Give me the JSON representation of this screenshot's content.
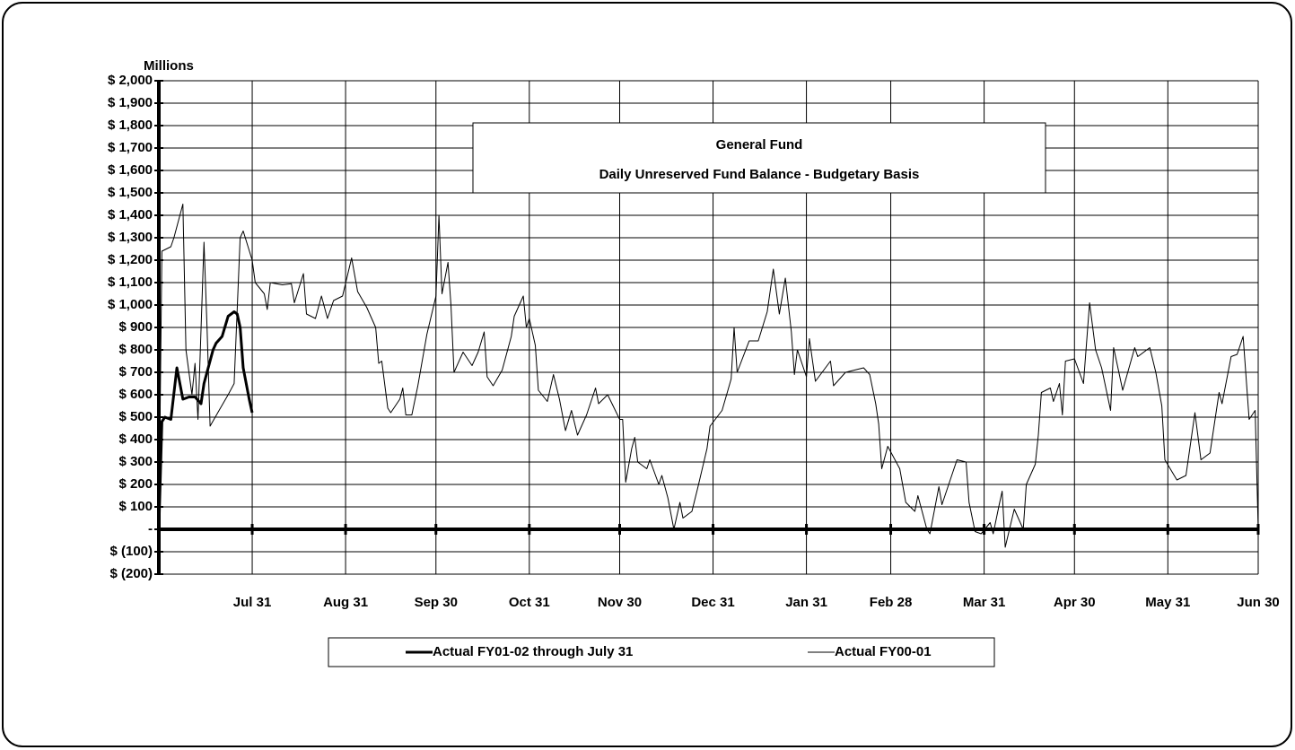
{
  "chart_data": {
    "type": "line",
    "title": "General Fund",
    "subtitle": "Daily Unreserved Fund Balance - Budgetary Basis",
    "y_label": "Millions",
    "xlim": [
      0,
      365
    ],
    "xticks": [
      {
        "value": 31,
        "label": "Jul 31"
      },
      {
        "value": 62,
        "label": "Aug 31"
      },
      {
        "value": 92,
        "label": "Sep 30"
      },
      {
        "value": 123,
        "label": "Oct 31"
      },
      {
        "value": 153,
        "label": "Nov 30"
      },
      {
        "value": 184,
        "label": "Dec 31"
      },
      {
        "value": 215,
        "label": "Jan 31"
      },
      {
        "value": 243,
        "label": "Feb 28"
      },
      {
        "value": 274,
        "label": "Mar 31"
      },
      {
        "value": 304,
        "label": "Apr 30"
      },
      {
        "value": 335,
        "label": "May 31"
      },
      {
        "value": 365,
        "label": "Jun 30"
      }
    ],
    "ylim": [
      -200,
      2000
    ],
    "yticks": [
      {
        "value": -200,
        "label": "$ (200)"
      },
      {
        "value": -100,
        "label": "$ (100)"
      },
      {
        "value": 0,
        "label": "-"
      },
      {
        "value": 100,
        "label": "$ 100"
      },
      {
        "value": 200,
        "label": "$ 200"
      },
      {
        "value": 300,
        "label": "$ 300"
      },
      {
        "value": 400,
        "label": "$ 400"
      },
      {
        "value": 500,
        "label": "$ 500"
      },
      {
        "value": 600,
        "label": "$ 600"
      },
      {
        "value": 700,
        "label": "$ 700"
      },
      {
        "value": 800,
        "label": "$ 800"
      },
      {
        "value": 900,
        "label": "$ 900"
      },
      {
        "value": 1000,
        "label": "$ 1,000"
      },
      {
        "value": 1100,
        "label": "$ 1,100"
      },
      {
        "value": 1200,
        "label": "$ 1,200"
      },
      {
        "value": 1300,
        "label": "$ 1,300"
      },
      {
        "value": 1400,
        "label": "$ 1,400"
      },
      {
        "value": 1500,
        "label": "$ 1,500"
      },
      {
        "value": 1600,
        "label": "$ 1,600"
      },
      {
        "value": 1700,
        "label": "$ 1,700"
      },
      {
        "value": 1800,
        "label": "$ 1,800"
      },
      {
        "value": 1900,
        "label": "$ 1,900"
      },
      {
        "value": 2000,
        "label": "$ 2,000"
      }
    ],
    "grid": true,
    "series": [
      {
        "name": "Actual FY01-02 through July 31",
        "color": "#000000",
        "width": 3,
        "x": [
          0,
          1,
          2,
          4,
          6,
          8,
          10,
          12,
          14,
          15,
          18,
          19,
          21,
          23,
          25,
          26,
          27,
          28,
          30,
          31
        ],
        "values": [
          0,
          480,
          500,
          490,
          720,
          580,
          590,
          590,
          560,
          650,
          800,
          830,
          860,
          950,
          970,
          960,
          900,
          720,
          580,
          520
        ]
      },
      {
        "name": "Actual FY00-01",
        "color": "#000000",
        "width": 1,
        "x": [
          0,
          1,
          4,
          5,
          8,
          9,
          11,
          12,
          13,
          15,
          16,
          17,
          20,
          23,
          25,
          27,
          28,
          31,
          32,
          35,
          36,
          37,
          41,
          44,
          45,
          48,
          49,
          52,
          54,
          56,
          58,
          61,
          64,
          66,
          69,
          72,
          73,
          74,
          76,
          77,
          80,
          81,
          82,
          84,
          86,
          89,
          92,
          93,
          94,
          96,
          97,
          98,
          101,
          104,
          106,
          108,
          109,
          111,
          114,
          117,
          118,
          121,
          122,
          123,
          125,
          126,
          129,
          131,
          133,
          135,
          137,
          139,
          142,
          145,
          146,
          149,
          153,
          154,
          155,
          157,
          158,
          159,
          162,
          163,
          166,
          167,
          169,
          171,
          173,
          174,
          177,
          179,
          182,
          183,
          187,
          190,
          191,
          192,
          196,
          199,
          202,
          204,
          206,
          208,
          210,
          211,
          212,
          215,
          216,
          218,
          223,
          224,
          228,
          234,
          236,
          238,
          239,
          240,
          242,
          246,
          248,
          251,
          252,
          255,
          256,
          259,
          260,
          264,
          265,
          268,
          269,
          271,
          273,
          276,
          277,
          279,
          280,
          281,
          284,
          287,
          288,
          291,
          292,
          293,
          296,
          297,
          299,
          300,
          301,
          304,
          307,
          309,
          311,
          313,
          316,
          317,
          320,
          324,
          325,
          329,
          331,
          333,
          334,
          338,
          341,
          344,
          346,
          349,
          352,
          353,
          356,
          358,
          360,
          362,
          364,
          365
        ],
        "values": [
          0,
          1240,
          1260,
          1300,
          1450,
          800,
          600,
          740,
          490,
          1280,
          900,
          460,
          530,
          600,
          650,
          1300,
          1330,
          1200,
          1100,
          1050,
          980,
          1100,
          1090,
          1095,
          1010,
          1140,
          960,
          940,
          1040,
          940,
          1020,
          1040,
          1210,
          1060,
          990,
          900,
          740,
          750,
          540,
          520,
          580,
          630,
          510,
          510,
          640,
          870,
          1040,
          1400,
          1050,
          1190,
          1000,
          700,
          790,
          730,
          790,
          880,
          680,
          640,
          710,
          860,
          950,
          1040,
          900,
          940,
          820,
          620,
          570,
          690,
          580,
          440,
          530,
          420,
          510,
          630,
          560,
          600,
          490,
          490,
          210,
          360,
          410,
          300,
          270,
          310,
          200,
          240,
          140,
          0,
          120,
          50,
          80,
          190,
          360,
          460,
          530,
          670,
          900,
          700,
          840,
          840,
          970,
          1160,
          960,
          1120,
          880,
          690,
          800,
          680,
          850,
          660,
          750,
          640,
          700,
          720,
          690,
          560,
          470,
          270,
          370,
          270,
          120,
          80,
          150,
          0,
          -20,
          190,
          110,
          270,
          310,
          300,
          120,
          -10,
          -20,
          30,
          -20,
          110,
          170,
          -80,
          90,
          0,
          200,
          290,
          420,
          610,
          630,
          570,
          650,
          510,
          750,
          760,
          650,
          1010,
          800,
          720,
          530,
          810,
          620,
          810,
          770,
          810,
          700,
          550,
          310,
          220,
          240,
          520,
          310,
          340,
          610,
          560,
          770,
          780,
          860,
          490,
          530,
          0
        ]
      }
    ]
  }
}
